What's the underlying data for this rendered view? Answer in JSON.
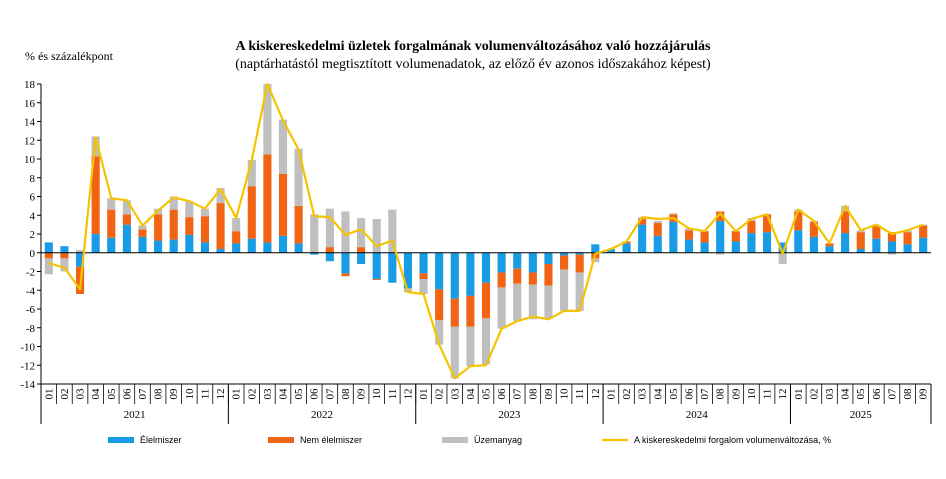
{
  "chart_data": {
    "type": "bar",
    "stacked": true,
    "title": "A kiskereskedelmi üzletek forgalmának volumenváltozásához való hozzájárulás",
    "subtitle": "(naptárhatástól megtisztított volumenadatok, az előző év azonos időszakához képest)",
    "ylabel": "% és százalékpont",
    "xlabel": "",
    "ylim": [
      -14,
      18
    ],
    "yticks": [
      -14,
      -12,
      -10,
      -8,
      -6,
      -4,
      -2,
      0,
      2,
      4,
      6,
      8,
      10,
      12,
      14,
      16,
      18
    ],
    "grid": false,
    "legend_position": "bottom",
    "years": [
      {
        "label": "2021",
        "months": 12
      },
      {
        "label": "2022",
        "months": 12
      },
      {
        "label": "2023",
        "months": 12
      },
      {
        "label": "2024",
        "months": 12
      },
      {
        "label": "2025",
        "months": 9
      }
    ],
    "categories": [
      "01",
      "02",
      "03",
      "04",
      "05",
      "06",
      "07",
      "08",
      "09",
      "10",
      "11",
      "12",
      "01",
      "02",
      "03",
      "04",
      "05",
      "06",
      "07",
      "08",
      "09",
      "10",
      "11",
      "12",
      "01",
      "02",
      "03",
      "04",
      "05",
      "06",
      "07",
      "08",
      "09",
      "10",
      "11",
      "12",
      "01",
      "02",
      "03",
      "04",
      "05",
      "06",
      "07",
      "08",
      "09",
      "10",
      "11",
      "12",
      "01",
      "02",
      "03",
      "04",
      "05",
      "06",
      "07",
      "08",
      "09"
    ],
    "colors": {
      "elelmiszer": "#1a9be6",
      "nem_elelmiszer": "#f06414",
      "uzemanyag": "#bfbfbf",
      "line": "#f5c400"
    },
    "series": [
      {
        "name": "Élelmiszer",
        "values": [
          1.1,
          0.7,
          -1.5,
          2.0,
          1.6,
          3.0,
          1.7,
          1.3,
          1.4,
          1.9,
          1.1,
          0.4,
          1.0,
          1.5,
          1.1,
          1.8,
          1.0,
          -0.2,
          -0.9,
          -2.2,
          -1.2,
          -2.8,
          -3.2,
          -3.8,
          -2.2,
          -3.9,
          -4.9,
          -4.6,
          -3.2,
          -2.1,
          -1.7,
          -2.1,
          -1.2,
          -0.3,
          -0.2,
          0.9,
          0.4,
          1.0,
          3.0,
          1.8,
          3.3,
          1.4,
          1.1,
          3.4,
          1.2,
          2.1,
          2.2,
          1.1,
          2.4,
          1.7,
          0.7,
          2.1,
          0.4,
          1.5,
          1.2,
          0.9,
          1.6
        ]
      },
      {
        "name": "Nem élelmiszer",
        "values": [
          -0.6,
          -0.6,
          -2.9,
          8.3,
          3.0,
          1.1,
          0.8,
          2.8,
          3.2,
          1.9,
          2.8,
          4.9,
          1.3,
          5.6,
          9.4,
          6.6,
          4.0,
          0.1,
          0.6,
          -0.3,
          0.6,
          -0.1,
          0.0,
          0.0,
          -0.6,
          -3.3,
          -3.0,
          -3.3,
          -3.8,
          -1.6,
          -1.6,
          -1.3,
          -2.3,
          -1.5,
          -1.9,
          -0.6,
          0.0,
          0.2,
          0.6,
          1.4,
          0.8,
          1.0,
          1.2,
          1.0,
          1.1,
          1.3,
          1.9,
          0.0,
          2.0,
          1.6,
          0.3,
          2.3,
          1.8,
          1.3,
          1.0,
          1.3,
          1.3
        ]
      },
      {
        "name": "Üzemanyag",
        "values": [
          -1.7,
          -1.4,
          0.3,
          2.1,
          1.2,
          1.5,
          0.4,
          0.6,
          1.4,
          1.7,
          0.8,
          1.6,
          1.4,
          2.8,
          7.5,
          5.8,
          6.1,
          4.0,
          4.1,
          4.4,
          3.1,
          3.6,
          4.6,
          -0.4,
          -1.6,
          -2.6,
          -5.5,
          -4.2,
          -4.9,
          -4.4,
          -4.0,
          -3.7,
          -3.5,
          -4.4,
          -4.1,
          -0.4,
          0.0,
          0.0,
          0.2,
          0.2,
          0.1,
          0.2,
          0.0,
          -0.2,
          0.0,
          0.3,
          0.0,
          -1.2,
          0.2,
          0.1,
          0.0,
          0.6,
          0.2,
          0.2,
          -0.2,
          0.2,
          0.1
        ]
      },
      {
        "name": "A kiskereskedelmi forgalom volumenváltozása, %",
        "type": "line",
        "values": [
          -1.1,
          -1.6,
          -3.9,
          12.3,
          5.8,
          5.6,
          2.9,
          4.5,
          5.9,
          5.5,
          4.7,
          6.8,
          3.7,
          9.9,
          18.0,
          14.1,
          11.0,
          3.9,
          3.8,
          1.9,
          2.5,
          0.7,
          1.3,
          -4.2,
          -4.4,
          -9.8,
          -13.4,
          -12.1,
          -12.0,
          -8.1,
          -7.3,
          -6.8,
          -7.1,
          -6.2,
          -6.2,
          -0.1,
          0.4,
          1.2,
          3.8,
          3.6,
          3.7,
          2.6,
          2.3,
          4.2,
          2.3,
          3.6,
          4.1,
          -0.1,
          4.6,
          3.4,
          1.0,
          5.0,
          2.4,
          3.0,
          2.0,
          2.4,
          3.0
        ]
      }
    ]
  }
}
